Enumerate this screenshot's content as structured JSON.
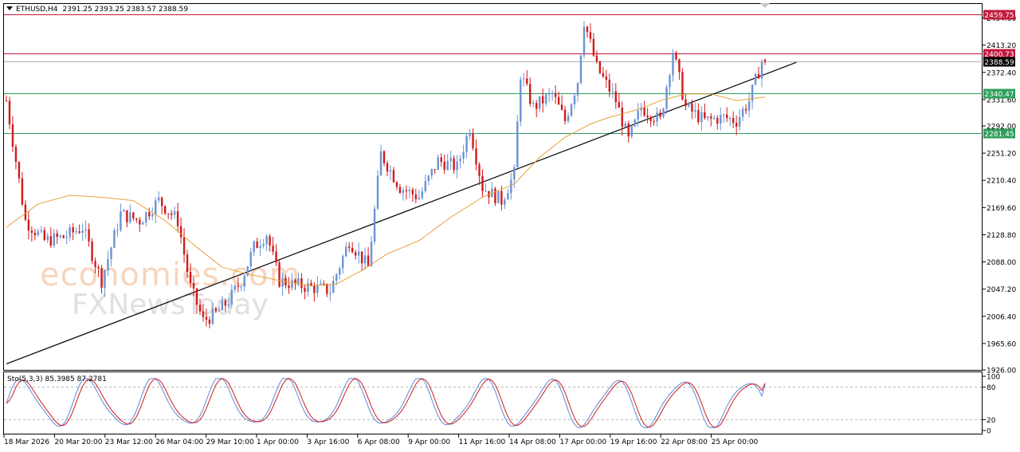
{
  "header": {
    "symbol": "ETHUSD,H4",
    "open": "2391.25",
    "high": "2393.25",
    "low": "2383.57",
    "close": "2388.59"
  },
  "oscillator": {
    "label": "Sto(5,3,3)",
    "main_value": "85.3985",
    "signal_value": "87.2781",
    "levels": [
      80,
      20
    ],
    "axis_labels": [
      "100",
      "80",
      "20",
      "0"
    ]
  },
  "watermark": {
    "line1": "economies.com",
    "line2": "FXNewsToday"
  },
  "colors": {
    "bull": "#6a93d4",
    "bear": "#d11a1a",
    "ma": "#e8a23a",
    "resistance": "#c2183c",
    "support": "#2e9e5b",
    "current": "#000000",
    "trendline": "#000000",
    "sto_main": "#5b8ad8",
    "sto_signal": "#d11a1a"
  },
  "chart_data": {
    "type": "candlestick",
    "ylim": [
      1926.0,
      2475.0
    ],
    "y_ticks": [
      "2454.00",
      "2413.20",
      "2372.40",
      "2331.60",
      "2292.00",
      "2251.20",
      "2210.40",
      "2169.60",
      "2128.80",
      "2088.00",
      "2047.20",
      "2006.40",
      "1965.60",
      "1926.00"
    ],
    "x_labels": [
      "18 Mar 2026",
      "20 Mar 20:00",
      "23 Mar 12:00",
      "26 Mar 04:00",
      "29 Mar 10:00",
      "1 Apr 00:00",
      "3 Apr 16:00",
      "6 Apr 08:00",
      "9 Apr 00:00",
      "11 Apr 16:00",
      "14 Apr 08:00",
      "17 Apr 00:00",
      "19 Apr 16:00",
      "22 Apr 08:00",
      "25 Apr 00:00"
    ],
    "horizontal_levels": [
      {
        "value": 2459.75,
        "label": "2459.75",
        "kind": "resistance"
      },
      {
        "value": 2400.73,
        "label": "2400.73",
        "kind": "resistance"
      },
      {
        "value": 2388.59,
        "label": "2388.59",
        "kind": "current"
      },
      {
        "value": 2340.47,
        "label": "2340.47",
        "kind": "support"
      },
      {
        "value": 2281.45,
        "label": "2281.45",
        "kind": "support"
      }
    ],
    "trendline": {
      "from": {
        "bar": 0,
        "price": 1935
      },
      "to": {
        "bar": 220,
        "price": 2385
      }
    },
    "close_path": [
      [
        0,
        2330
      ],
      [
        6,
        2150
      ],
      [
        12,
        2120
      ],
      [
        18,
        2125
      ],
      [
        24,
        2140
      ],
      [
        30,
        2060
      ],
      [
        36,
        2160
      ],
      [
        42,
        2150
      ],
      [
        48,
        2180
      ],
      [
        54,
        2150
      ],
      [
        58,
        2050
      ],
      [
        62,
        2000
      ],
      [
        66,
        2010
      ],
      [
        70,
        2030
      ],
      [
        74,
        2060
      ],
      [
        78,
        2110
      ],
      [
        82,
        2130
      ],
      [
        86,
        2060
      ],
      [
        90,
        2055
      ],
      [
        96,
        2050
      ],
      [
        102,
        2045
      ],
      [
        108,
        2120
      ],
      [
        114,
        2080
      ],
      [
        118,
        2250
      ],
      [
        124,
        2200
      ],
      [
        130,
        2185
      ],
      [
        136,
        2240
      ],
      [
        142,
        2230
      ],
      [
        146,
        2290
      ],
      [
        150,
        2200
      ],
      [
        156,
        2180
      ],
      [
        160,
        2220
      ],
      [
        162,
        2370
      ],
      [
        166,
        2320
      ],
      [
        172,
        2340
      ],
      [
        176,
        2300
      ],
      [
        180,
        2360
      ],
      [
        182,
        2450
      ],
      [
        186,
        2380
      ],
      [
        192,
        2330
      ],
      [
        196,
        2270
      ],
      [
        200,
        2320
      ],
      [
        206,
        2300
      ],
      [
        210,
        2405
      ],
      [
        214,
        2320
      ],
      [
        220,
        2300
      ],
      [
        226,
        2305
      ],
      [
        230,
        2300
      ],
      [
        234,
        2330
      ],
      [
        238,
        2388.59
      ]
    ],
    "ma_path": [
      [
        0,
        2140
      ],
      [
        10,
        2175
      ],
      [
        20,
        2188
      ],
      [
        30,
        2185
      ],
      [
        40,
        2180
      ],
      [
        50,
        2150
      ],
      [
        60,
        2110
      ],
      [
        68,
        2080
      ],
      [
        76,
        2070
      ],
      [
        86,
        2060
      ],
      [
        96,
        2052
      ],
      [
        104,
        2055
      ],
      [
        112,
        2075
      ],
      [
        120,
        2100
      ],
      [
        130,
        2120
      ],
      [
        140,
        2155
      ],
      [
        150,
        2185
      ],
      [
        160,
        2205
      ],
      [
        168,
        2245
      ],
      [
        176,
        2275
      ],
      [
        184,
        2295
      ],
      [
        190,
        2305
      ],
      [
        200,
        2318
      ],
      [
        206,
        2330
      ],
      [
        214,
        2340
      ],
      [
        222,
        2340
      ],
      [
        230,
        2330
      ],
      [
        238,
        2335
      ]
    ],
    "stochastic_main_last": 85.3985,
    "stochastic_signal_last": 87.2781
  }
}
